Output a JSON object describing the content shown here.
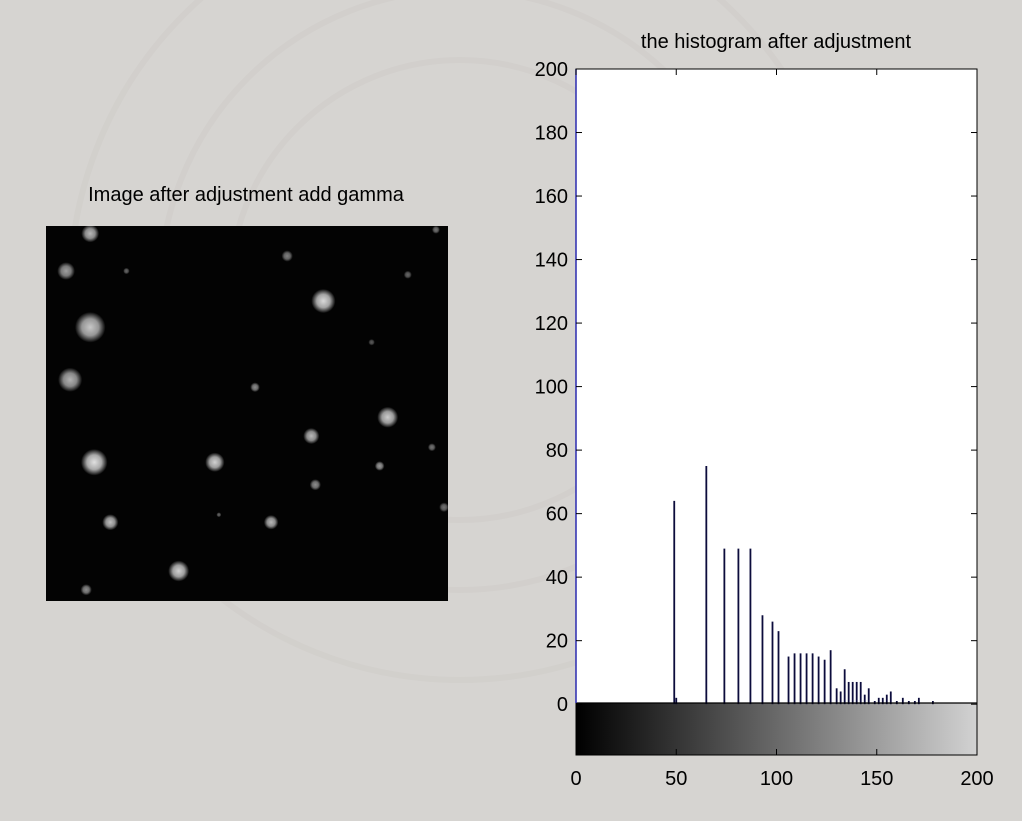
{
  "colors": {
    "figure_bg": "#d6d4d1",
    "axes_bg": "#ffffff",
    "bar": "#0c0c3c",
    "left_axis": "#2b2bb0",
    "text": "#000000"
  },
  "image_panel": {
    "title": "Image after adjustment add gamma",
    "image_bg": "#030303",
    "spots": [
      {
        "u": 0.11,
        "v": 0.02,
        "r": 0.022,
        "level": 0.72
      },
      {
        "u": 0.05,
        "v": 0.12,
        "r": 0.022,
        "level": 0.62
      },
      {
        "u": 0.6,
        "v": 0.08,
        "r": 0.014,
        "level": 0.5
      },
      {
        "u": 0.9,
        "v": 0.13,
        "r": 0.01,
        "level": 0.4
      },
      {
        "u": 0.97,
        "v": 0.01,
        "r": 0.01,
        "level": 0.45
      },
      {
        "u": 0.69,
        "v": 0.2,
        "r": 0.03,
        "level": 0.85
      },
      {
        "u": 0.11,
        "v": 0.27,
        "r": 0.038,
        "level": 0.78
      },
      {
        "u": 0.06,
        "v": 0.41,
        "r": 0.03,
        "level": 0.7
      },
      {
        "u": 0.2,
        "v": 0.12,
        "r": 0.008,
        "level": 0.4
      },
      {
        "u": 0.52,
        "v": 0.43,
        "r": 0.012,
        "level": 0.55
      },
      {
        "u": 0.85,
        "v": 0.51,
        "r": 0.026,
        "level": 0.8
      },
      {
        "u": 0.66,
        "v": 0.56,
        "r": 0.02,
        "level": 0.72
      },
      {
        "u": 0.42,
        "v": 0.63,
        "r": 0.024,
        "level": 0.82
      },
      {
        "u": 0.12,
        "v": 0.63,
        "r": 0.033,
        "level": 0.88
      },
      {
        "u": 0.83,
        "v": 0.64,
        "r": 0.012,
        "level": 0.6
      },
      {
        "u": 0.96,
        "v": 0.59,
        "r": 0.01,
        "level": 0.45
      },
      {
        "u": 0.67,
        "v": 0.69,
        "r": 0.014,
        "level": 0.55
      },
      {
        "u": 0.99,
        "v": 0.75,
        "r": 0.012,
        "level": 0.45
      },
      {
        "u": 0.56,
        "v": 0.79,
        "r": 0.018,
        "level": 0.72
      },
      {
        "u": 0.16,
        "v": 0.79,
        "r": 0.02,
        "level": 0.75
      },
      {
        "u": 0.33,
        "v": 0.92,
        "r": 0.026,
        "level": 0.82
      },
      {
        "u": 0.1,
        "v": 0.97,
        "r": 0.014,
        "level": 0.55
      },
      {
        "u": 0.43,
        "v": 0.77,
        "r": 0.006,
        "level": 0.4
      },
      {
        "u": 0.81,
        "v": 0.31,
        "r": 0.008,
        "level": 0.35
      }
    ]
  },
  "chart_data": {
    "type": "bar",
    "title": "the histogram after adjustment",
    "xlabel": "",
    "ylabel": "",
    "xlim": [
      0,
      200
    ],
    "ylim": [
      -16,
      200
    ],
    "xticks": [
      0,
      50,
      100,
      150,
      200
    ],
    "yticks": [
      0,
      20,
      40,
      60,
      80,
      100,
      120,
      140,
      160,
      180,
      200
    ],
    "colorbar": {
      "from": "#000000",
      "to": "#d2d2d2",
      "range": [
        0,
        200
      ]
    },
    "grid": false,
    "bars": [
      {
        "x": 49,
        "y": 64
      },
      {
        "x": 50,
        "y": 2
      },
      {
        "x": 65,
        "y": 75
      },
      {
        "x": 74,
        "y": 49
      },
      {
        "x": 81,
        "y": 49
      },
      {
        "x": 87,
        "y": 49
      },
      {
        "x": 93,
        "y": 28
      },
      {
        "x": 98,
        "y": 26
      },
      {
        "x": 101,
        "y": 23
      },
      {
        "x": 106,
        "y": 15
      },
      {
        "x": 109,
        "y": 16
      },
      {
        "x": 112,
        "y": 16
      },
      {
        "x": 115,
        "y": 16
      },
      {
        "x": 118,
        "y": 16
      },
      {
        "x": 121,
        "y": 15
      },
      {
        "x": 124,
        "y": 14
      },
      {
        "x": 127,
        "y": 17
      },
      {
        "x": 130,
        "y": 5
      },
      {
        "x": 132,
        "y": 4
      },
      {
        "x": 134,
        "y": 11
      },
      {
        "x": 136,
        "y": 7
      },
      {
        "x": 138,
        "y": 7
      },
      {
        "x": 140,
        "y": 7
      },
      {
        "x": 142,
        "y": 7
      },
      {
        "x": 144,
        "y": 3
      },
      {
        "x": 146,
        "y": 5
      },
      {
        "x": 149,
        "y": 1
      },
      {
        "x": 151,
        "y": 2
      },
      {
        "x": 153,
        "y": 2
      },
      {
        "x": 155,
        "y": 3
      },
      {
        "x": 157,
        "y": 4
      },
      {
        "x": 160,
        "y": 1
      },
      {
        "x": 163,
        "y": 2
      },
      {
        "x": 166,
        "y": 1
      },
      {
        "x": 169,
        "y": 1
      },
      {
        "x": 171,
        "y": 2
      },
      {
        "x": 178,
        "y": 1
      }
    ]
  }
}
